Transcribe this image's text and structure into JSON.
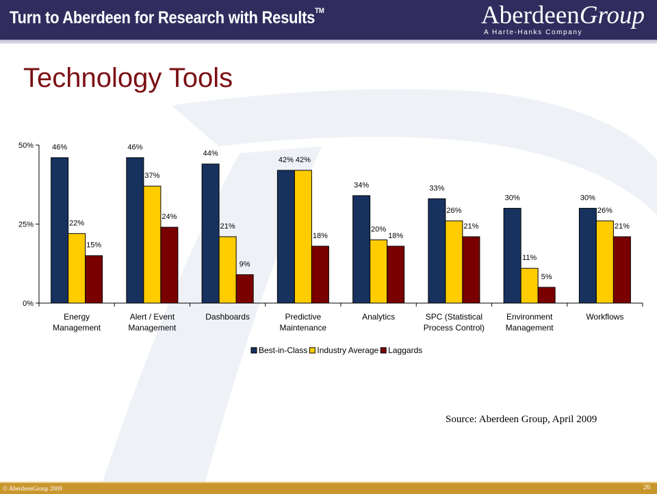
{
  "header": {
    "tagline": "Turn to Aberdeen for Research with Results",
    "tagline_mark": "TM",
    "brand_name_a": "Aberdeen",
    "brand_name_b": "Group",
    "brand_sub": "A Harte-Hanks Company"
  },
  "slide": {
    "title": "Technology Tools",
    "source": "Source: Aberdeen Group, April 2009"
  },
  "footer": {
    "copyright": "© AberdeenGroup 2009",
    "page_number": "26"
  },
  "colors": {
    "header_bg": "#302c5e",
    "title": "#7b0f14",
    "best_in_class": "#17325f",
    "industry_average": "#ffcc00",
    "laggards": "#7a0000",
    "footer_bg": "#c9962e"
  },
  "chart_data": {
    "type": "bar",
    "categories": [
      [
        "Energy",
        "Management"
      ],
      [
        "Alert / Event",
        "Management"
      ],
      [
        "Dashboards"
      ],
      [
        "Predictive",
        "Maintenance"
      ],
      [
        "Analytics"
      ],
      [
        "SPC (Statistical",
        "Process Control)"
      ],
      [
        "Environment",
        "Management"
      ],
      [
        "Workflows"
      ]
    ],
    "series": [
      {
        "name": "Best-in-Class",
        "values": [
          46,
          46,
          44,
          42,
          34,
          33,
          30,
          30
        ],
        "color": "#17325f"
      },
      {
        "name": "Industry Average",
        "values": [
          22,
          37,
          21,
          42,
          20,
          26,
          11,
          26
        ],
        "color": "#ffcc00"
      },
      {
        "name": "Laggards",
        "values": [
          15,
          24,
          9,
          18,
          18,
          21,
          5,
          21
        ],
        "color": "#7a0000"
      }
    ],
    "value_labels": [
      [
        "46%",
        "46%",
        "44%",
        "42%",
        "34%",
        "33%",
        "30%",
        "30%"
      ],
      [
        "22%",
        "37%",
        "21%",
        "42%",
        "20%",
        "26%",
        "11%",
        "26%"
      ],
      [
        "15%",
        "24%",
        "9%",
        "18%",
        "18%",
        "21%",
        "5%",
        "21%"
      ]
    ],
    "yticks": [
      {
        "value": 0,
        "label": "0%"
      },
      {
        "value": 25,
        "label": "25%"
      },
      {
        "value": 50,
        "label": "50%"
      }
    ],
    "ylim": [
      0,
      50
    ],
    "grid": false,
    "legend_position": "bottom",
    "title": "",
    "xlabel": "",
    "ylabel": ""
  }
}
